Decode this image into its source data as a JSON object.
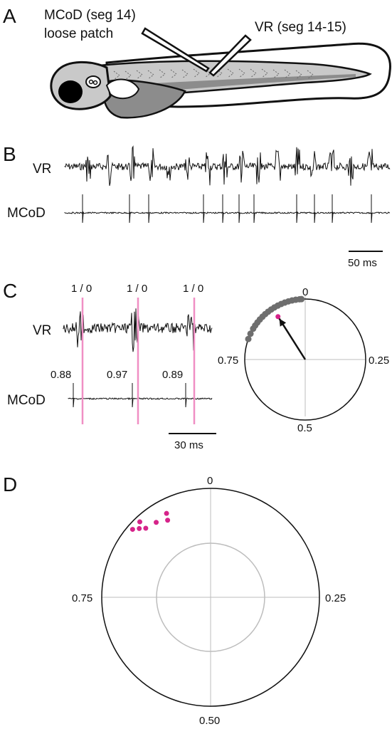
{
  "panels": {
    "a": {
      "label": "A",
      "electrode1_line1": "MCoD (seg 14)",
      "electrode1_line2": "loose patch",
      "electrode2": "VR (seg 14-15)"
    },
    "b": {
      "label": "B",
      "trace1_label": "VR",
      "trace2_label": "MCoD",
      "scalebar_label": "50 ms"
    },
    "c": {
      "label": "C",
      "trace1_label": "VR",
      "trace2_label": "MCoD",
      "burst_markers": [
        "1 / 0",
        "1 / 0",
        "1 / 0"
      ],
      "spike_phases": [
        "0.88",
        "0.97",
        "0.89"
      ],
      "scalebar_label": "30 ms",
      "polar_labels": {
        "top": "0",
        "right": "0.25",
        "bottom": "0.5",
        "left": "0.75"
      }
    },
    "d": {
      "label": "D",
      "polar_labels": {
        "top": "0",
        "right": "0.25",
        "bottom": "0.50",
        "left": "0.75"
      }
    }
  },
  "colors": {
    "trace": "#111111",
    "phase_line": "#f08fc4",
    "magenta": "#d6248a",
    "spike_dot": "#6e6e6e",
    "axis_gray": "#bdbdbd",
    "fish_body": "#c9c9c9",
    "fish_dark": "#8c8c8c"
  },
  "chart_data": [
    {
      "type": "scatter",
      "panel": "C",
      "coordinate": "polar phase (0-1 clockwise from top)",
      "points": [
        {
          "phase": 0.99,
          "r": 1.0
        },
        {
          "phase": 0.985,
          "r": 1.0
        },
        {
          "phase": 0.975,
          "r": 1.0
        },
        {
          "phase": 0.965,
          "r": 1.0
        },
        {
          "phase": 0.955,
          "r": 1.0
        },
        {
          "phase": 0.945,
          "r": 1.0
        },
        {
          "phase": 0.935,
          "r": 1.0
        },
        {
          "phase": 0.925,
          "r": 1.0
        },
        {
          "phase": 0.915,
          "r": 1.0
        },
        {
          "phase": 0.905,
          "r": 1.0
        },
        {
          "phase": 0.895,
          "r": 1.0
        },
        {
          "phase": 0.885,
          "r": 1.0
        },
        {
          "phase": 0.875,
          "r": 1.0
        },
        {
          "phase": 0.865,
          "r": 1.0
        },
        {
          "phase": 0.855,
          "r": 1.0
        },
        {
          "phase": 0.845,
          "r": 1.0
        },
        {
          "phase": 0.835,
          "r": 1.0
        },
        {
          "phase": 0.82,
          "r": 1.0
        },
        {
          "phase": 0.805,
          "r": 1.0
        }
      ],
      "mean_vector": {
        "phase": 0.91,
        "r": 0.8
      }
    },
    {
      "type": "scatter",
      "panel": "D",
      "coordinate": "polar phase (0-1 clockwise from top), outer ring r=1, inner ring r=0.5",
      "points": [
        {
          "phase": 0.9,
          "r": 0.85
        },
        {
          "phase": 0.919,
          "r": 0.81
        },
        {
          "phase": 0.923,
          "r": 0.87
        },
        {
          "phase": 0.88,
          "r": 0.87
        },
        {
          "phase": 0.88,
          "r": 0.95
        },
        {
          "phase": 0.872,
          "r": 0.91
        },
        {
          "phase": 0.864,
          "r": 0.95
        }
      ]
    }
  ]
}
